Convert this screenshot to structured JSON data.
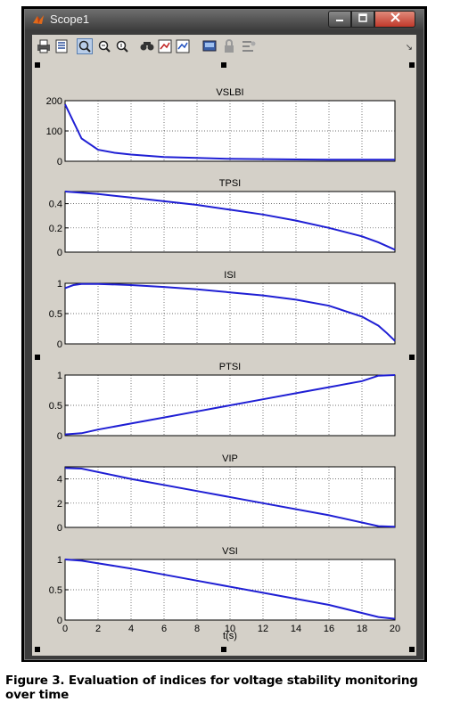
{
  "window": {
    "title": "Scope1"
  },
  "toolbar": {
    "icons": [
      "print-icon",
      "parameters-icon",
      "zoom-icon",
      "zoom-x-icon",
      "zoom-y-icon",
      "autoscale-icon",
      "save-axes-icon",
      "restore-axes-icon",
      "floating-scope-icon",
      "lock-icon",
      "signal-selection-icon"
    ]
  },
  "caption": "Figure 3. Evaluation of indices for voltage stability monitoring over time",
  "colors": {
    "trace": "#1f1fd4",
    "axes_bg": "#ffffff",
    "figure_bg": "#d4d0c8"
  },
  "chart_data": [
    {
      "type": "line",
      "title": "VSLBI",
      "xlim": [
        0,
        20
      ],
      "ylim": [
        0,
        200
      ],
      "yticks": [
        "0",
        "100",
        "200"
      ],
      "grid": true,
      "x": [
        0,
        1,
        2,
        3,
        4,
        5,
        6,
        8,
        10,
        12,
        14,
        16,
        18,
        20
      ],
      "y": [
        188,
        75,
        38,
        28,
        22,
        18,
        14,
        11,
        8,
        7,
        6,
        5,
        5,
        5
      ]
    },
    {
      "type": "line",
      "title": "TPSI",
      "xlim": [
        0,
        20
      ],
      "ylim": [
        0,
        0.5
      ],
      "yticks": [
        "0",
        "0.2",
        "0.4"
      ],
      "grid": true,
      "x": [
        0,
        2,
        4,
        6,
        8,
        10,
        12,
        14,
        16,
        18,
        19,
        20
      ],
      "y": [
        0.5,
        0.48,
        0.45,
        0.42,
        0.39,
        0.35,
        0.31,
        0.26,
        0.2,
        0.13,
        0.08,
        0.02
      ]
    },
    {
      "type": "line",
      "title": "ISI",
      "xlim": [
        0,
        20
      ],
      "ylim": [
        0,
        1
      ],
      "yticks": [
        "0",
        "0.5",
        "1"
      ],
      "grid": true,
      "x": [
        0,
        0.5,
        1,
        2,
        4,
        6,
        8,
        10,
        12,
        14,
        16,
        18,
        19,
        19.5,
        20
      ],
      "y": [
        0.92,
        0.97,
        0.99,
        0.99,
        0.97,
        0.94,
        0.9,
        0.85,
        0.8,
        0.73,
        0.63,
        0.45,
        0.3,
        0.18,
        0.05
      ]
    },
    {
      "type": "line",
      "title": "PTSI",
      "xlim": [
        0,
        20
      ],
      "ylim": [
        0,
        1
      ],
      "yticks": [
        "0",
        "0.5",
        "1"
      ],
      "grid": true,
      "x": [
        0,
        1,
        2,
        4,
        6,
        8,
        10,
        12,
        14,
        16,
        18,
        19,
        20
      ],
      "y": [
        0.02,
        0.04,
        0.1,
        0.2,
        0.3,
        0.4,
        0.5,
        0.6,
        0.7,
        0.8,
        0.9,
        0.99,
        1.0
      ]
    },
    {
      "type": "line",
      "title": "VIP",
      "xlim": [
        0,
        20
      ],
      "ylim": [
        0,
        5
      ],
      "yticks": [
        "0",
        "2",
        "4"
      ],
      "grid": true,
      "x": [
        0,
        1,
        4,
        8,
        12,
        16,
        19,
        20
      ],
      "y": [
        4.9,
        4.85,
        4.0,
        3.0,
        2.0,
        1.0,
        0.1,
        0.05
      ]
    },
    {
      "type": "line",
      "title": "VSI",
      "xlim": [
        0,
        20
      ],
      "ylim": [
        0,
        1
      ],
      "yticks": [
        "0",
        "0.5",
        "1"
      ],
      "grid": true,
      "xlabel": "t(s)",
      "xticks": [
        "0",
        "2",
        "4",
        "6",
        "8",
        "10",
        "12",
        "14",
        "16",
        "18",
        "20"
      ],
      "x": [
        0,
        1,
        4,
        8,
        12,
        16,
        19,
        20
      ],
      "y": [
        1.0,
        0.98,
        0.85,
        0.65,
        0.45,
        0.25,
        0.05,
        0.02
      ]
    }
  ]
}
